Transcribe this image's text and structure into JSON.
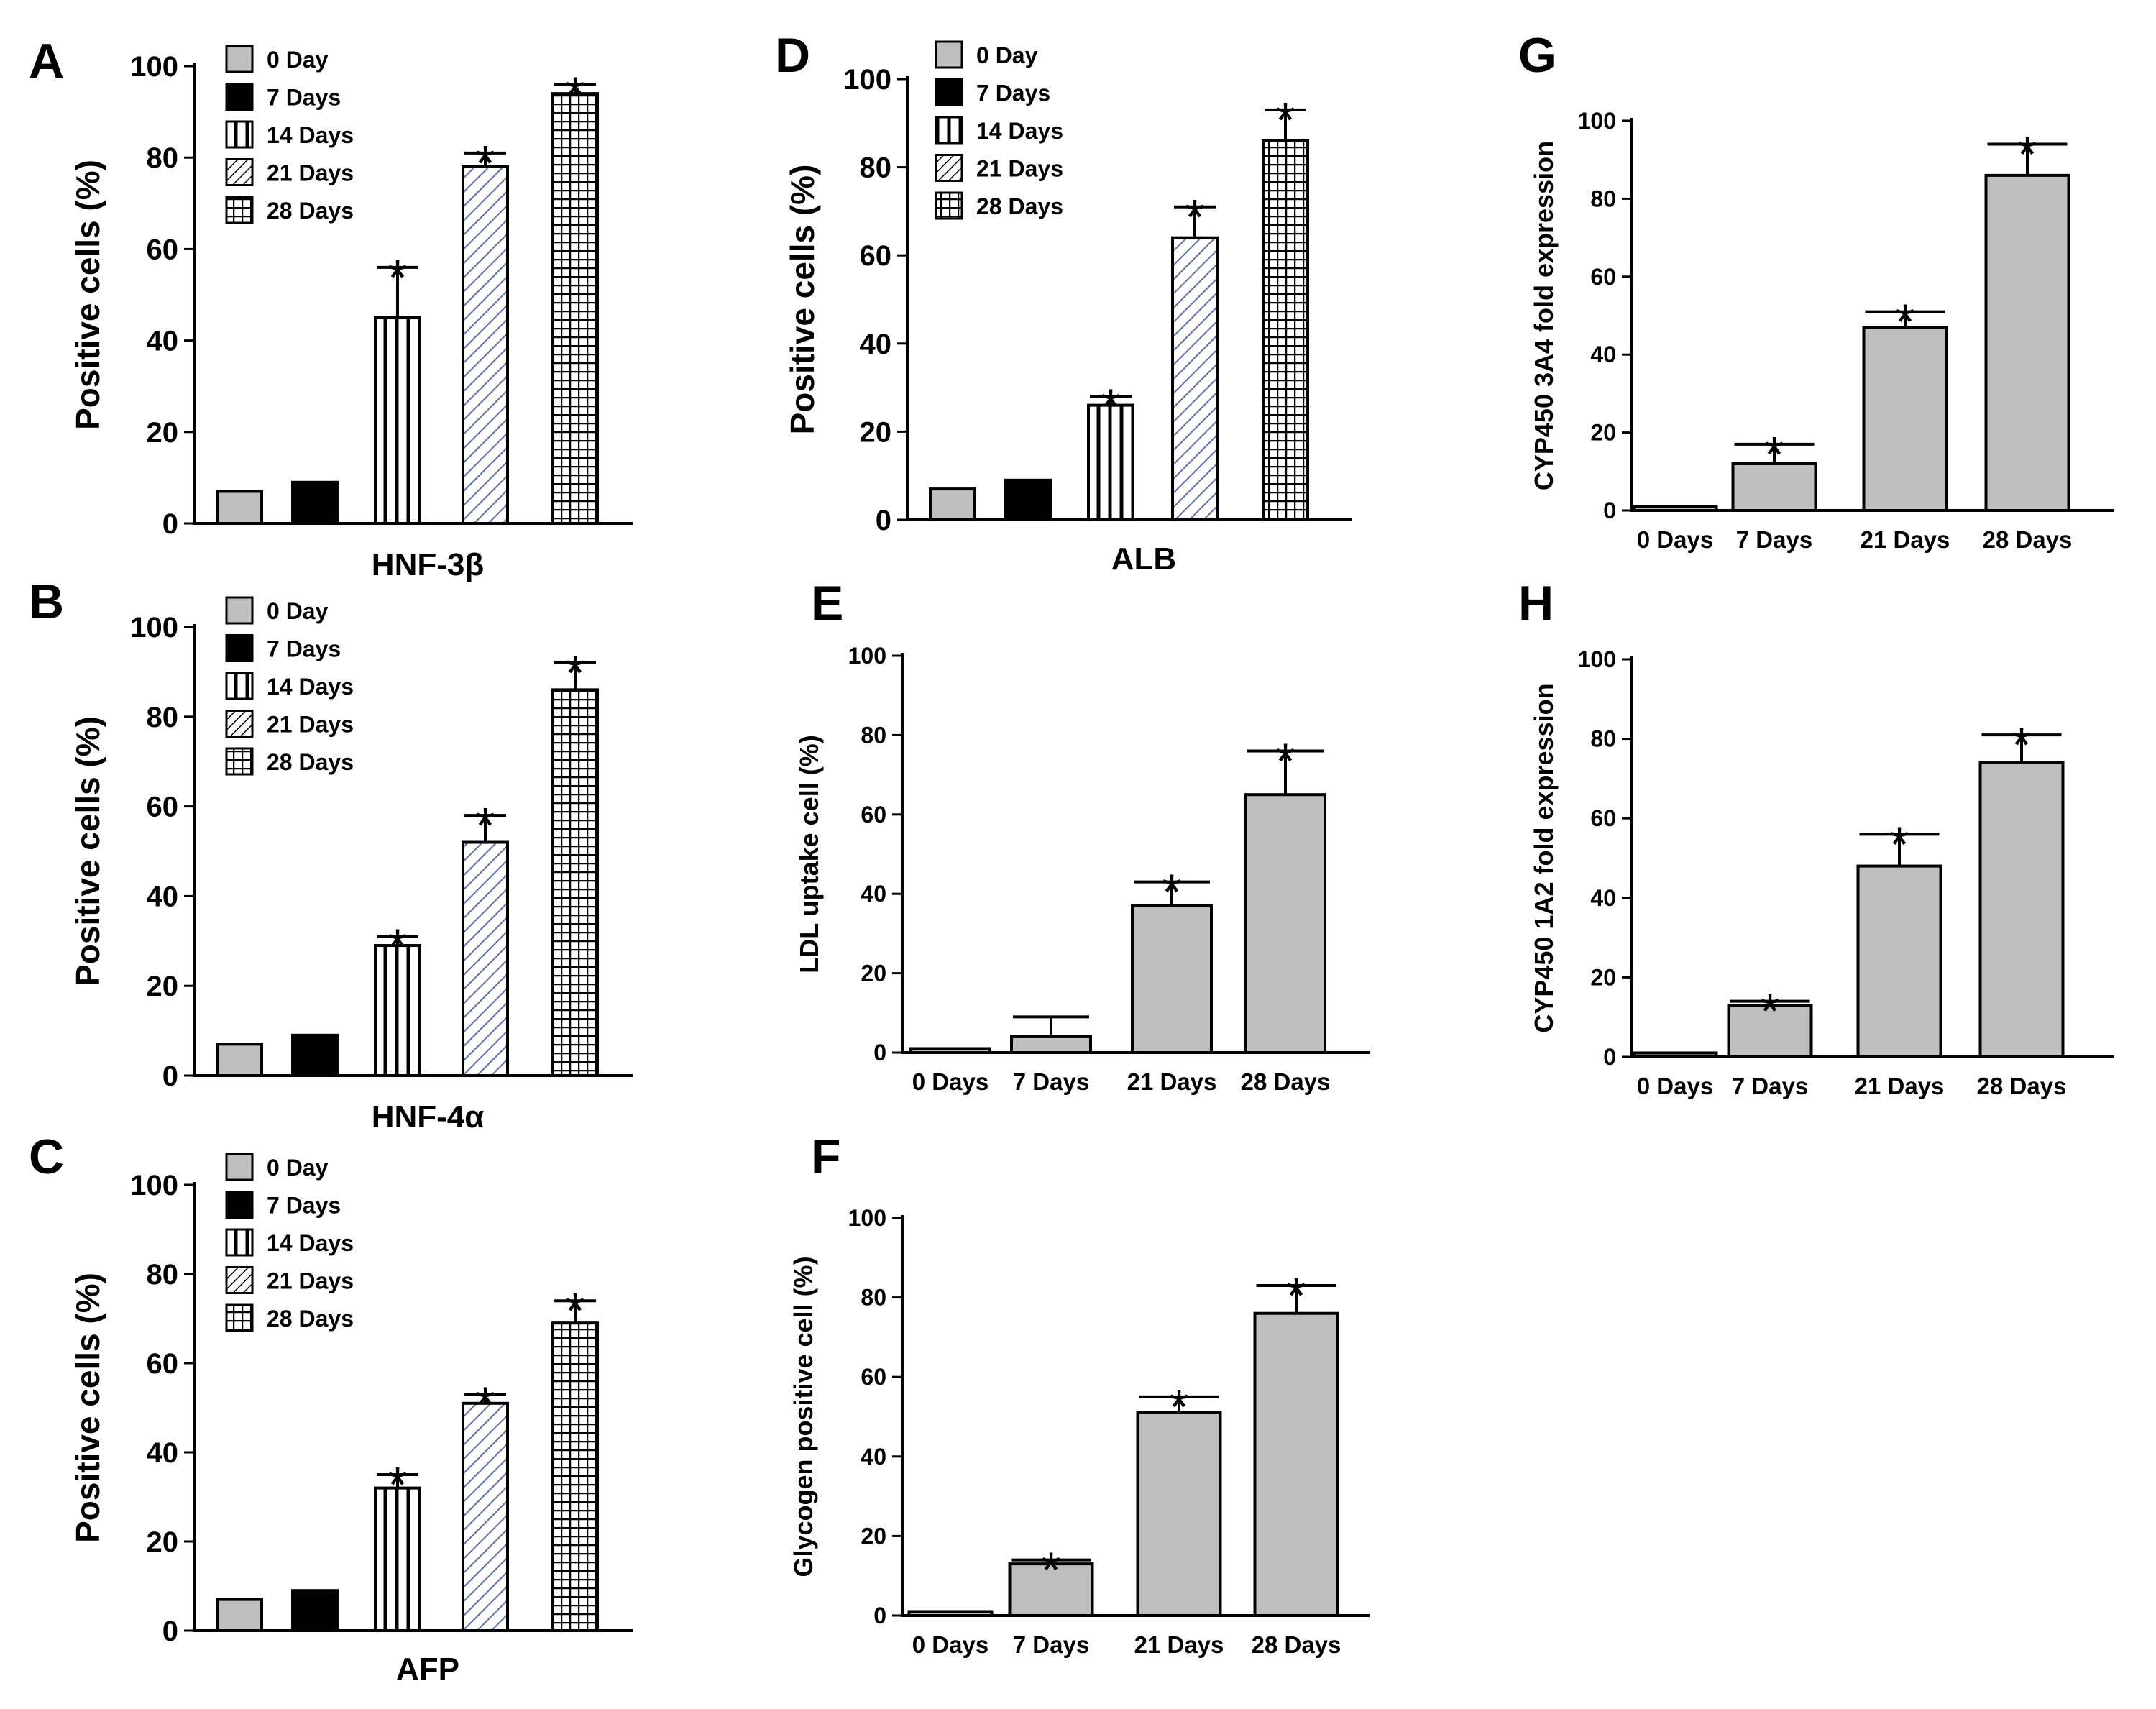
{
  "figure": {
    "colors": {
      "gray_fill": "#bfbfbf",
      "black_fill": "#000000",
      "hatch_blue": "#5b6fb3",
      "axis": "#000000",
      "background": "#ffffff"
    },
    "legend_labels": [
      "0 Day",
      "7 Days",
      "14 Days",
      "21 Days",
      "28 Days"
    ],
    "significance_marker": "*"
  },
  "chart_data": [
    {
      "id": "A",
      "panel_label": "A",
      "type": "bar",
      "style": "patterned",
      "title": "",
      "xlabel": "HNF-3β",
      "ylabel": "Positive cells (%)",
      "ylim": [
        0,
        100
      ],
      "yticks": [
        0,
        20,
        40,
        60,
        80,
        100
      ],
      "categories": [
        "0 Day",
        "7 Days",
        "14 Days",
        "21 Days",
        "28 Days"
      ],
      "values": [
        7,
        9,
        45,
        78,
        94
      ],
      "errors": [
        0,
        0,
        11,
        3,
        2
      ],
      "significant": [
        false,
        false,
        true,
        true,
        true
      ],
      "legend": "top-left"
    },
    {
      "id": "B",
      "panel_label": "B",
      "type": "bar",
      "style": "patterned",
      "title": "",
      "xlabel": "HNF-4α",
      "ylabel": "Positive cells (%)",
      "ylim": [
        0,
        100
      ],
      "yticks": [
        0,
        20,
        40,
        60,
        80,
        100
      ],
      "categories": [
        "0 Day",
        "7 Days",
        "14 Days",
        "21 Days",
        "28 Days"
      ],
      "values": [
        7,
        9,
        29,
        52,
        86
      ],
      "errors": [
        0,
        0,
        2,
        6,
        6
      ],
      "significant": [
        false,
        false,
        true,
        true,
        true
      ],
      "legend": "top-left"
    },
    {
      "id": "C",
      "panel_label": "C",
      "type": "bar",
      "style": "patterned",
      "title": "",
      "xlabel": "AFP",
      "ylabel": "Positive cells (%)",
      "ylim": [
        0,
        100
      ],
      "yticks": [
        0,
        20,
        40,
        60,
        80,
        100
      ],
      "categories": [
        "0 Day",
        "7 Days",
        "14 Days",
        "21 Days",
        "28 Days"
      ],
      "values": [
        7,
        9,
        32,
        51,
        69
      ],
      "errors": [
        0,
        0,
        3,
        2,
        5
      ],
      "significant": [
        false,
        false,
        true,
        true,
        true
      ],
      "legend": "top-left"
    },
    {
      "id": "D",
      "panel_label": "D",
      "type": "bar",
      "style": "patterned",
      "title": "",
      "xlabel": "ALB",
      "ylabel": "Positive cells (%)",
      "ylim": [
        0,
        100
      ],
      "yticks": [
        0,
        20,
        40,
        60,
        80,
        100
      ],
      "categories": [
        "0 Day",
        "7 Days",
        "14 Days",
        "21 Days",
        "28 Days"
      ],
      "values": [
        7,
        9,
        26,
        64,
        86
      ],
      "errors": [
        0,
        0,
        2,
        7,
        7
      ],
      "significant": [
        false,
        false,
        true,
        true,
        true
      ],
      "legend": "top-left"
    },
    {
      "id": "E",
      "panel_label": "E",
      "type": "bar",
      "style": "gray",
      "title": "",
      "xlabel": "",
      "ylabel": "LDL uptake cell (%)",
      "ylim": [
        0,
        100
      ],
      "yticks": [
        0,
        20,
        40,
        60,
        80,
        100
      ],
      "categories": [
        "0 Days",
        "7 Days",
        "21 Days",
        "28 Days"
      ],
      "values": [
        1,
        4,
        37,
        65
      ],
      "errors": [
        0,
        5,
        6,
        11
      ],
      "significant": [
        false,
        false,
        true,
        true
      ]
    },
    {
      "id": "F",
      "panel_label": "F",
      "type": "bar",
      "style": "gray",
      "title": "",
      "xlabel": "",
      "ylabel": "Glycogen positive cell (%)",
      "ylim": [
        0,
        100
      ],
      "yticks": [
        0,
        20,
        40,
        60,
        80,
        100
      ],
      "categories": [
        "0 Days",
        "7 Days",
        "21 Days",
        "28 Days"
      ],
      "values": [
        1,
        13,
        51,
        76
      ],
      "errors": [
        0,
        1,
        4,
        7
      ],
      "significant": [
        false,
        true,
        true,
        true
      ]
    },
    {
      "id": "G",
      "panel_label": "G",
      "type": "bar",
      "style": "gray",
      "title": "",
      "xlabel": "",
      "ylabel": "CYP450 3A4 fold expression",
      "ylim": [
        0,
        100
      ],
      "yticks": [
        0,
        20,
        40,
        60,
        80,
        100
      ],
      "categories": [
        "0 Days",
        "7 Days",
        "21 Days",
        "28 Days"
      ],
      "values": [
        1,
        12,
        47,
        86
      ],
      "errors": [
        0,
        5,
        4,
        8
      ],
      "significant": [
        false,
        true,
        true,
        true
      ]
    },
    {
      "id": "H",
      "panel_label": "H",
      "type": "bar",
      "style": "gray",
      "title": "",
      "xlabel": "",
      "ylabel": "CYP450 1A2 fold expression",
      "ylim": [
        0,
        100
      ],
      "yticks": [
        0,
        20,
        40,
        60,
        80,
        100
      ],
      "categories": [
        "0 Days",
        "7 Days",
        "21 Days",
        "28 Days"
      ],
      "values": [
        1,
        13,
        48,
        74
      ],
      "errors": [
        0,
        1,
        8,
        7
      ],
      "significant": [
        false,
        true,
        true,
        true
      ]
    }
  ]
}
